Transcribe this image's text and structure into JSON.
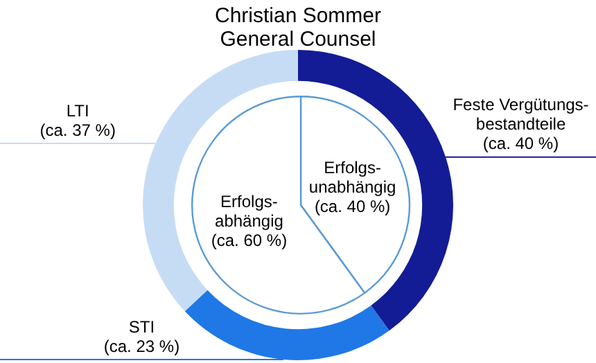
{
  "chart_data": [
    {
      "type": "donut",
      "title": "Christian Sommer",
      "subtitle": "General Counsel",
      "categories": [
        "Feste Vergütungs-\nbestandteile",
        "STI",
        "LTI"
      ],
      "values": [
        40,
        23,
        37
      ],
      "colors": [
        "#131c94",
        "#1f78e6",
        "#c6dcf5"
      ],
      "value_labels": [
        "(ca. 40 %)",
        "(ca. 23 %)",
        "(ca. 37 %)"
      ]
    },
    {
      "type": "pie",
      "categories": [
        "Erfolgs-\nunabhängig",
        "Erfolgs-\nabhängig"
      ],
      "values": [
        40,
        60
      ],
      "colors": [
        "#ffffff",
        "#ffffff"
      ],
      "value_labels": [
        "(ca. 40 %)",
        "(ca. 60 %)"
      ]
    }
  ]
}
